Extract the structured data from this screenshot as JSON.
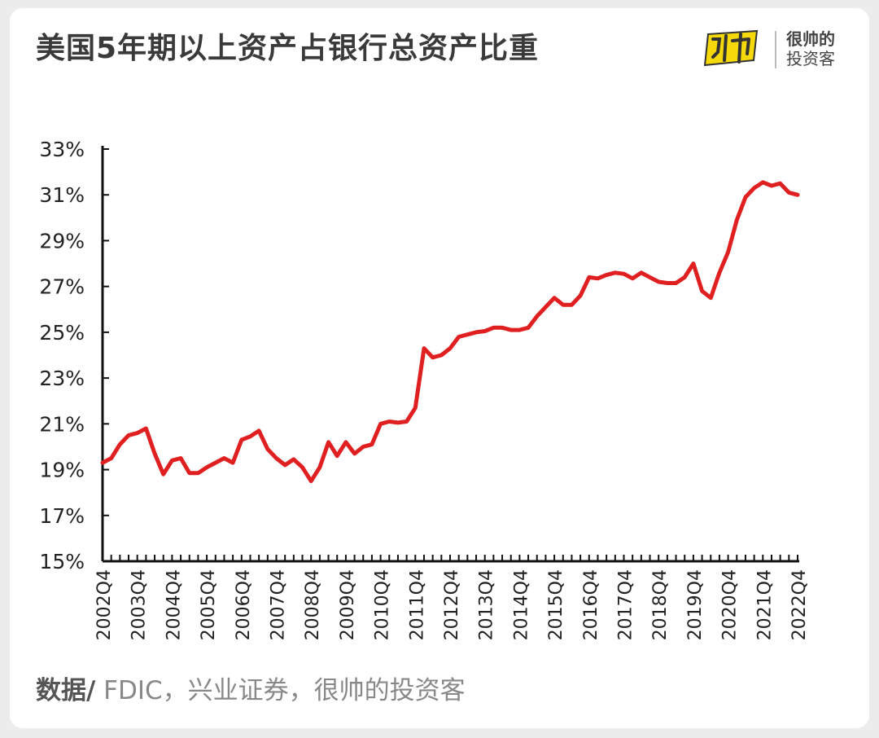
{
  "title": "美国5年期以上资产占银行总资产比重",
  "brand": {
    "logo_text": "帅",
    "line1": "很帅的",
    "line2": "投资客",
    "logo_color": "#f5d90a"
  },
  "source": {
    "label": "数据/",
    "text": " FDIC，兴业证券，很帅的投资客"
  },
  "chart_data": {
    "type": "line",
    "title": "美国5年期以上资产占银行总资产比重",
    "xlabel": "",
    "ylabel": "",
    "ylim": [
      15,
      33
    ],
    "y_ticks": [
      15,
      17,
      19,
      21,
      23,
      25,
      27,
      29,
      31,
      33
    ],
    "y_tick_labels": [
      "15%",
      "17%",
      "19%",
      "21%",
      "23%",
      "25%",
      "27%",
      "29%",
      "31%",
      "33%"
    ],
    "x_tick_labels": [
      "2002Q4",
      "2003Q4",
      "2004Q4",
      "2005Q4",
      "2006Q4",
      "2007Q4",
      "2008Q4",
      "2009Q4",
      "2010Q4",
      "2011Q4",
      "2012Q4",
      "2013Q4",
      "2014Q4",
      "2015Q4",
      "2016Q4",
      "2017Q4",
      "2018Q4",
      "2019Q4",
      "2020Q4",
      "2021Q4",
      "2022Q4"
    ],
    "series": [
      {
        "color": "#e02020",
        "values": [
          19.3,
          19.5,
          20.1,
          20.5,
          20.6,
          20.8,
          19.7,
          18.8,
          19.4,
          19.5,
          18.85,
          18.85,
          19.1,
          19.3,
          19.5,
          19.3,
          20.3,
          20.45,
          20.7,
          19.9,
          19.5,
          19.2,
          19.45,
          19.1,
          18.5,
          19.1,
          20.2,
          19.6,
          20.2,
          19.7,
          20.0,
          20.1,
          21.0,
          21.1,
          21.05,
          21.1,
          21.7,
          24.3,
          23.9,
          24.0,
          24.3,
          24.8,
          24.9,
          25.0,
          25.05,
          25.2,
          25.2,
          25.1,
          25.1,
          25.2,
          25.7,
          26.1,
          26.5,
          26.2,
          26.2,
          26.6,
          27.4,
          27.35,
          27.5,
          27.6,
          27.55,
          27.35,
          27.6,
          27.4,
          27.2,
          27.15,
          27.15,
          27.4,
          28.0,
          26.8,
          26.5,
          27.6,
          28.5,
          29.9,
          30.9,
          31.3,
          31.55,
          31.4,
          31.5,
          31.1,
          31.0
        ]
      }
    ]
  }
}
